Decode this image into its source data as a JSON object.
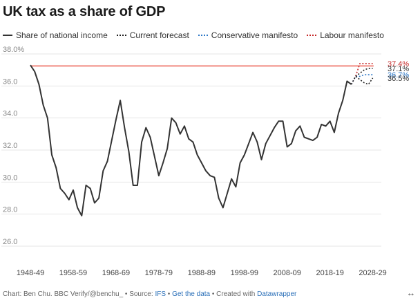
{
  "title": "UK tax as a share of GDP",
  "legend": [
    {
      "label": "Share of national income",
      "style": "solid",
      "color": "#333333"
    },
    {
      "label": "Current forecast",
      "style": "dotted",
      "color": "#222222"
    },
    {
      "label": "Conservative manifesto",
      "style": "dotted",
      "color": "#2e78c7"
    },
    {
      "label": "Labour manifesto",
      "style": "dotted",
      "color": "#c62828"
    }
  ],
  "footer": {
    "prefix": "Chart: Ben Chu. BBC Verify/@benchu_ • Source: ",
    "source_link": "IFS",
    "sep1": " • ",
    "data_link": "Get the data",
    "sep2": " • Created with ",
    "tool_link": "Datawrapper"
  },
  "expand_icon": "expand-arrows-icon",
  "chart_data": {
    "type": "line",
    "ylim": [
      26,
      38
    ],
    "y_ticks": [
      26,
      28,
      30,
      32,
      34,
      36,
      38
    ],
    "y_tick_labels": [
      "26.0",
      "28.0",
      "30.0",
      "32.0",
      "34.0",
      "36.0",
      "38.0%"
    ],
    "xlim": [
      1948,
      2030
    ],
    "x_ticks": [
      1948,
      1958,
      1968,
      1978,
      1988,
      1998,
      2008,
      2018,
      2028
    ],
    "x_tick_labels": [
      "1948-49",
      "1958-59",
      "1968-69",
      "1978-79",
      "1988-89",
      "1998-99",
      "2008-09",
      "2018-19",
      "2028-29"
    ],
    "reference_line": {
      "y": 37.25,
      "color": "#f08a80"
    },
    "grid": "horizontal",
    "series": [
      {
        "name": "Share of national income",
        "color": "#333333",
        "style": "solid",
        "x": [
          1948,
          1949,
          1950,
          1951,
          1952,
          1953,
          1954,
          1955,
          1956,
          1957,
          1958,
          1959,
          1960,
          1961,
          1962,
          1963,
          1964,
          1965,
          1966,
          1967,
          1968,
          1969,
          1970,
          1971,
          1972,
          1973,
          1974,
          1975,
          1976,
          1977,
          1978,
          1979,
          1980,
          1981,
          1982,
          1983,
          1984,
          1985,
          1986,
          1987,
          1988,
          1989,
          1990,
          1991,
          1992,
          1993,
          1994,
          1995,
          1996,
          1997,
          1998,
          1999,
          2000,
          2001,
          2002,
          2003,
          2004,
          2005,
          2006,
          2007,
          2008,
          2009,
          2010,
          2011,
          2012,
          2013,
          2014,
          2015,
          2016,
          2017,
          2018,
          2019,
          2020,
          2021,
          2022,
          2023
        ],
        "y": [
          37.3,
          36.9,
          36.1,
          34.8,
          34.0,
          31.7,
          30.9,
          29.6,
          29.3,
          28.9,
          29.5,
          28.4,
          27.9,
          29.8,
          29.6,
          28.7,
          29.0,
          30.7,
          31.3,
          32.6,
          33.9,
          35.1,
          33.4,
          31.9,
          29.8,
          29.8,
          32.5,
          33.4,
          32.8,
          31.6,
          30.4,
          31.2,
          32.1,
          34.0,
          33.7,
          33.0,
          33.5,
          32.7,
          32.5,
          31.7,
          31.2,
          30.7,
          30.4,
          30.3,
          29.0,
          28.4,
          29.3,
          30.2,
          29.7,
          31.2,
          31.7,
          32.4,
          33.1,
          32.5,
          31.4,
          32.4,
          32.9,
          33.4,
          33.8,
          33.8,
          32.2,
          32.4,
          33.2,
          33.5,
          32.8,
          32.7,
          32.6,
          32.8,
          33.6,
          33.5,
          33.8,
          33.1,
          34.3,
          35.1,
          36.3,
          36.1
        ]
      },
      {
        "name": "Current forecast",
        "color": "#222222",
        "style": "dotted",
        "x": [
          2023,
          2024,
          2025,
          2026,
          2027,
          2028
        ],
        "y": [
          36.1,
          36.6,
          36.4,
          36.2,
          36.1,
          36.5
        ]
      },
      {
        "name": "Conservative manifesto",
        "color": "#2e78c7",
        "style": "dotted",
        "x": [
          2023,
          2024,
          2025,
          2026,
          2027,
          2028
        ],
        "y": [
          36.1,
          36.6,
          36.6,
          36.7,
          36.7,
          36.7
        ]
      },
      {
        "name": "Labour manifesto",
        "color": "#c62828",
        "style": "dotted",
        "x": [
          2023,
          2024,
          2025,
          2026,
          2027,
          2028
        ],
        "y": [
          36.1,
          36.6,
          37.4,
          37.4,
          37.4,
          37.4
        ]
      }
    ],
    "end_labels": [
      {
        "text": "37.4%",
        "value": 37.4,
        "color": "#c62828"
      },
      {
        "text": "37.1%",
        "value": 37.1,
        "color": "#333333"
      },
      {
        "text": "36.7%",
        "value": 36.7,
        "color": "#2e78c7"
      },
      {
        "text": "36.5%",
        "value": 36.5,
        "color": "#333333"
      }
    ],
    "extra_projection": {
      "color": "#222222",
      "style": "dotted",
      "x": [
        2024,
        2025,
        2026,
        2027,
        2028
      ],
      "y": [
        36.6,
        36.8,
        37.0,
        37.1,
        37.1
      ]
    }
  }
}
